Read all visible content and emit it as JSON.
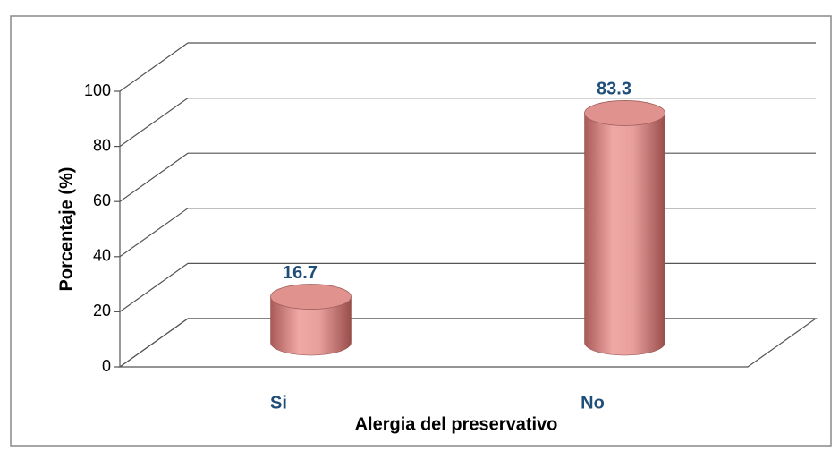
{
  "chart_data": {
    "type": "bar3d",
    "y_axis_label": "Porcentaje (%)",
    "x_axis_label": "Alergia del preservativo",
    "categories": [
      "Si",
      "No"
    ],
    "values": [
      16.7,
      83.3
    ],
    "color": "#e0928f",
    "label_color": "#1f4e79",
    "ylim": [
      0,
      100
    ],
    "yticks": [
      0,
      20,
      40,
      60,
      80,
      100
    ],
    "grid": true
  }
}
